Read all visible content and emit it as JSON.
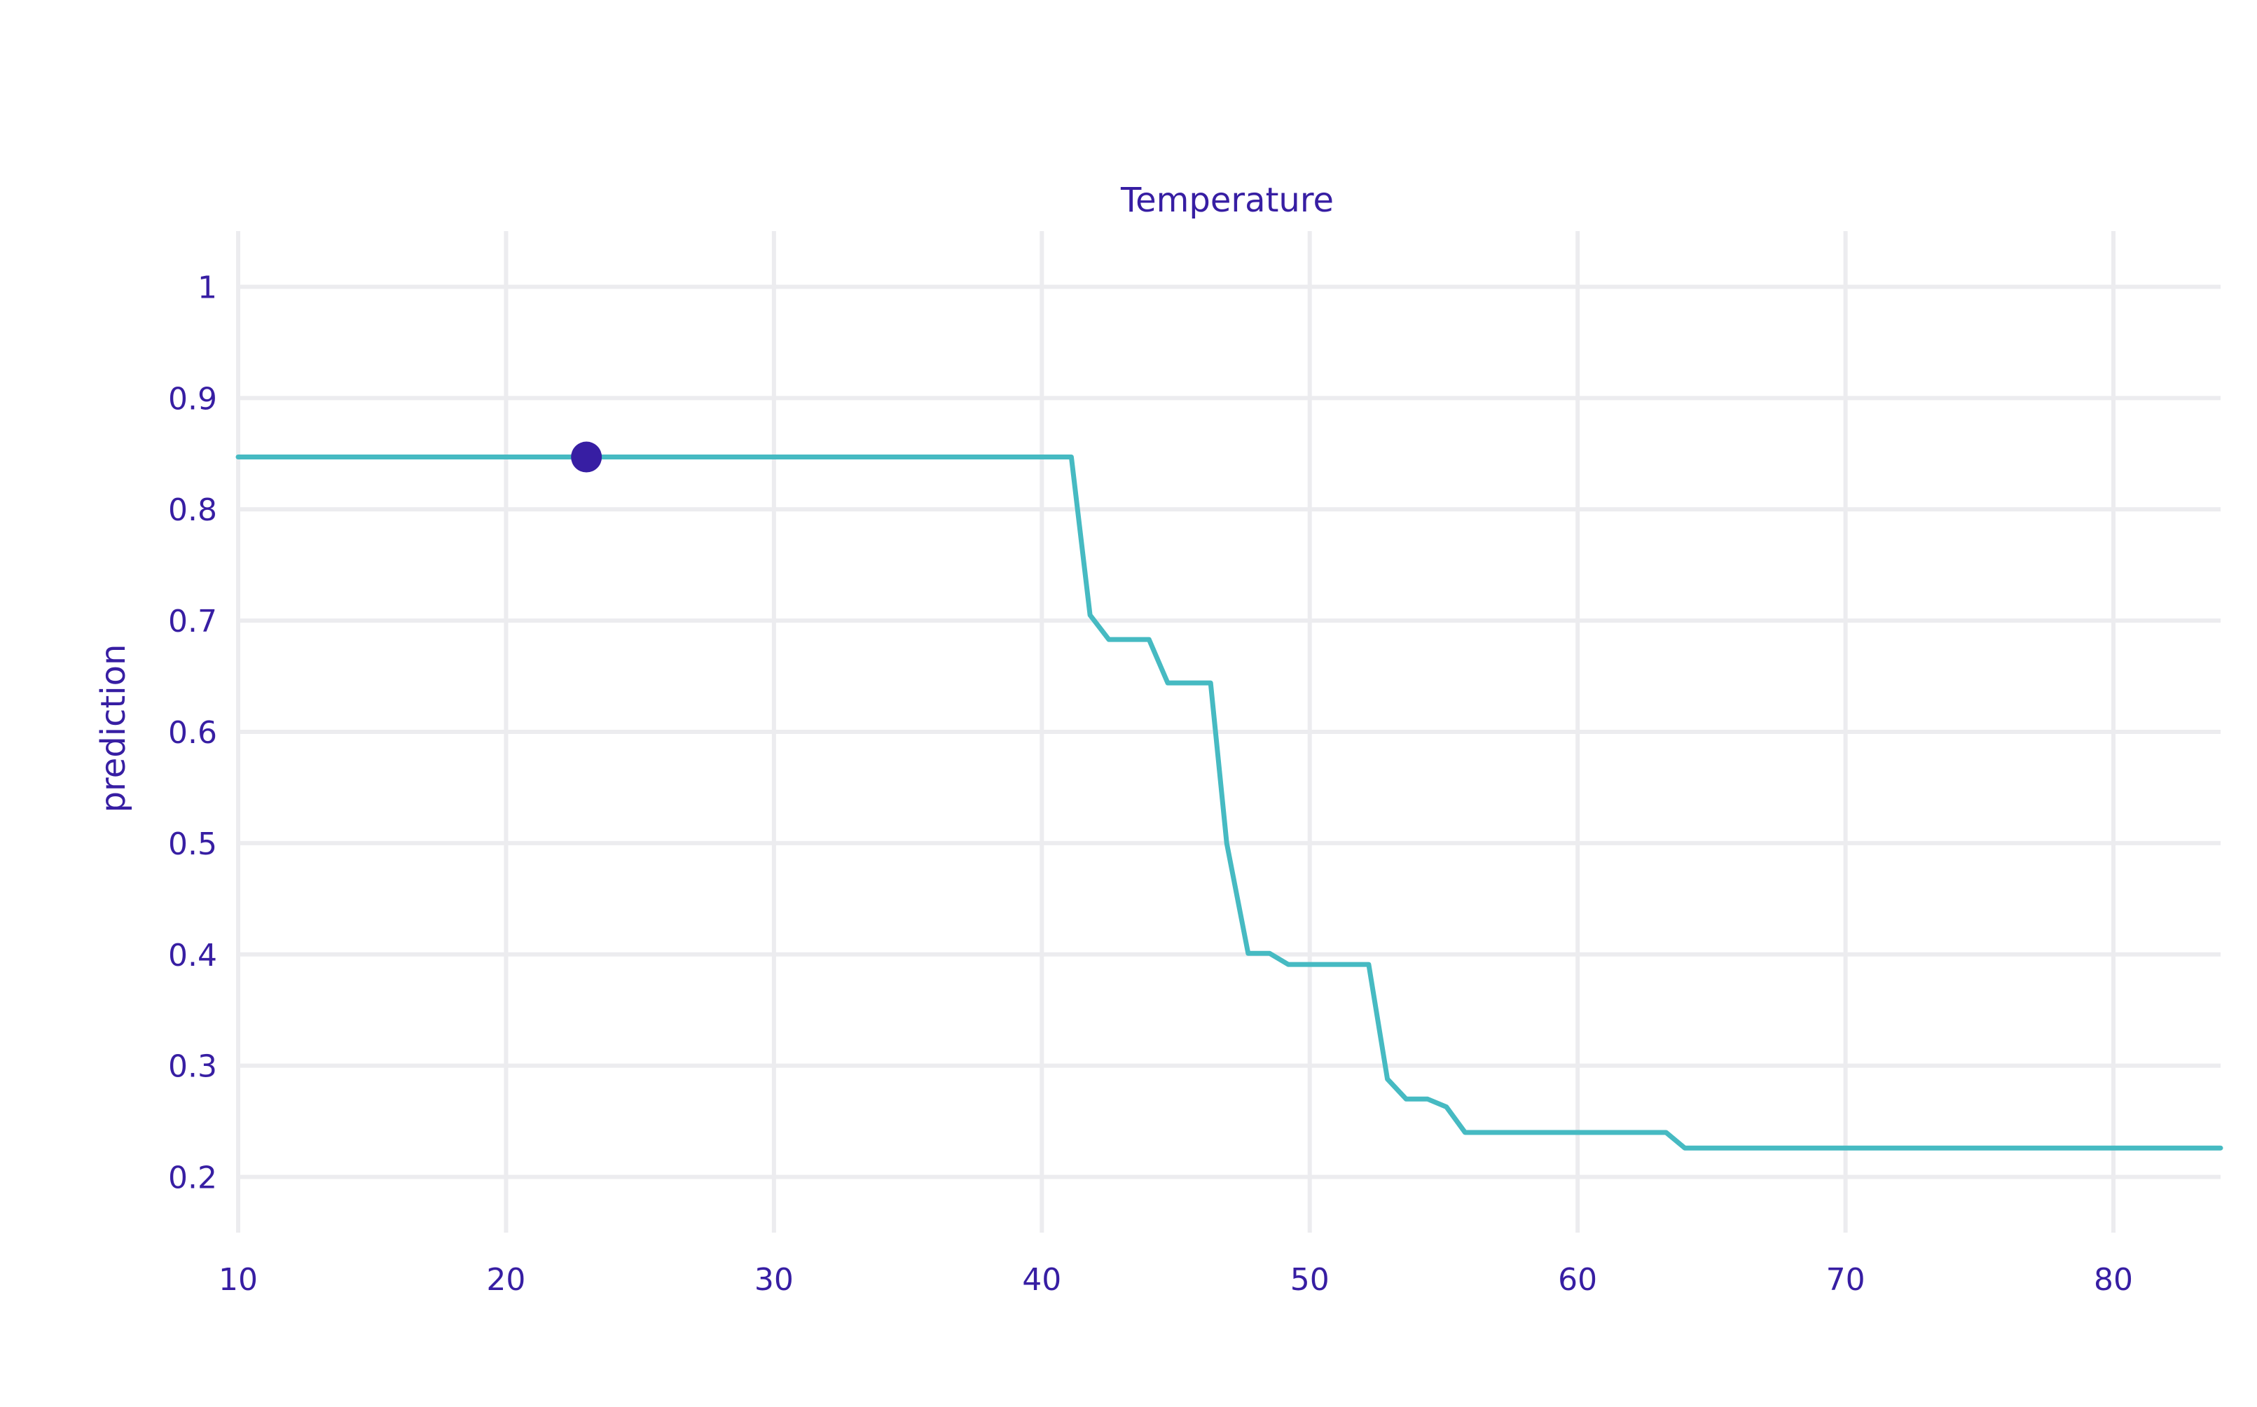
{
  "chart_data": {
    "type": "line",
    "title": "Temperature",
    "xlabel": "",
    "ylabel": "prediction",
    "xlim": [
      10,
      84
    ],
    "ylim": [
      0.15,
      1.05
    ],
    "x_ticks": [
      10,
      20,
      30,
      40,
      50,
      60,
      70,
      80
    ],
    "y_ticks": [
      0.2,
      0.3,
      0.4,
      0.5,
      0.6,
      0.7,
      0.8,
      0.9,
      1
    ],
    "y_tick_labels": [
      "0.2",
      "0.3",
      "0.4",
      "0.5",
      "0.6",
      "0.7",
      "0.8",
      "0.9",
      "1"
    ],
    "grid": true,
    "series": [
      {
        "line_color": "#46bac2",
        "x": [
          10,
          41.1,
          41.8,
          42.5,
          44.0,
          44.7,
          46.3,
          46.9,
          47.7,
          48.5,
          49.2,
          52.2,
          52.9,
          53.6,
          54.4,
          55.1,
          55.8,
          63.3,
          64.0,
          84
        ],
        "y": [
          0.847,
          0.847,
          0.705,
          0.683,
          0.683,
          0.644,
          0.644,
          0.5,
          0.401,
          0.401,
          0.391,
          0.391,
          0.288,
          0.27,
          0.27,
          0.263,
          0.24,
          0.24,
          0.226,
          0.226
        ]
      }
    ],
    "observation": {
      "x": 23,
      "y": 0.847,
      "color": "#371ea3"
    }
  }
}
